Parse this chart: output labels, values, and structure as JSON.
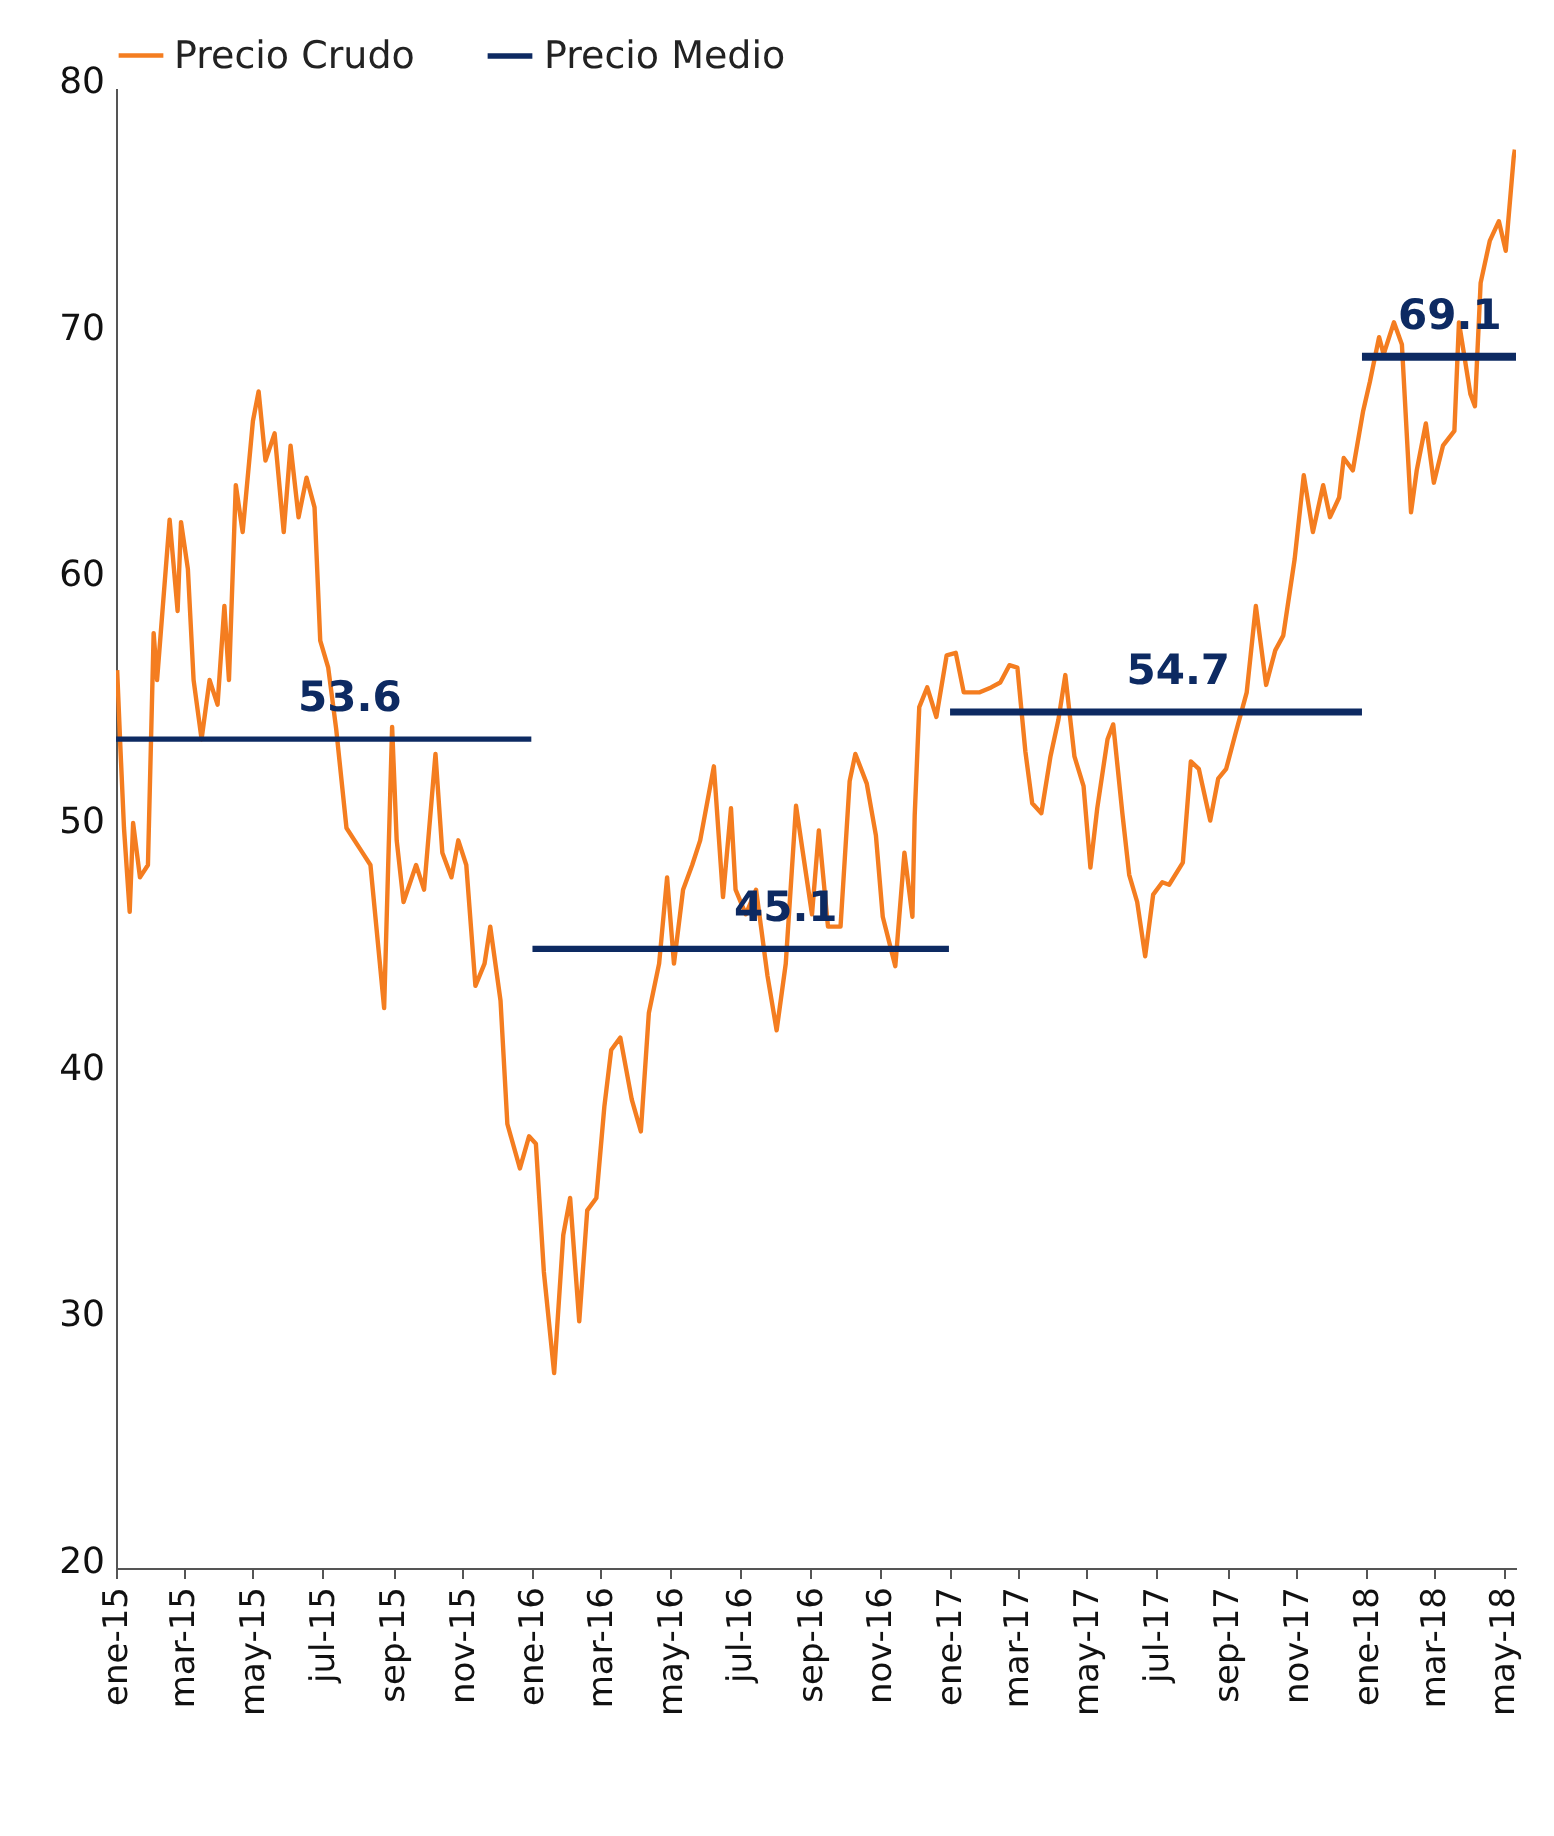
{
  "chart_data": {
    "type": "line",
    "legend": "top",
    "grid": false,
    "xlim": [
      "2015-01-01",
      "2018-05-12"
    ],
    "xticks": [
      {
        "value": "2015-01-01",
        "label": "ene-15"
      },
      {
        "value": "2015-03-01",
        "label": "mar-15"
      },
      {
        "value": "2015-05-01",
        "label": "may-15"
      },
      {
        "value": "2015-07-01",
        "label": "jul-15"
      },
      {
        "value": "2015-09-01",
        "label": "sep-15"
      },
      {
        "value": "2015-11-01",
        "label": "nov-15"
      },
      {
        "value": "2016-01-01",
        "label": "ene-16"
      },
      {
        "value": "2016-03-01",
        "label": "mar-16"
      },
      {
        "value": "2016-05-01",
        "label": "may-16"
      },
      {
        "value": "2016-07-01",
        "label": "jul-16"
      },
      {
        "value": "2016-09-01",
        "label": "sep-16"
      },
      {
        "value": "2016-11-01",
        "label": "nov-16"
      },
      {
        "value": "2017-01-01",
        "label": "ene-17"
      },
      {
        "value": "2017-03-01",
        "label": "mar-17"
      },
      {
        "value": "2017-05-01",
        "label": "may-17"
      },
      {
        "value": "2017-07-01",
        "label": "jul-17"
      },
      {
        "value": "2017-09-01",
        "label": "sep-17"
      },
      {
        "value": "2017-11-01",
        "label": "nov-17"
      },
      {
        "value": "2018-01-01",
        "label": "ene-18"
      },
      {
        "value": "2018-03-01",
        "label": "mar-18"
      },
      {
        "value": "2018-05-01",
        "label": "may-18"
      }
    ],
    "ylim": [
      20,
      80
    ],
    "yticks": [
      20,
      30,
      40,
      50,
      60,
      70,
      80
    ],
    "series": [
      {
        "name": "Precio Crudo",
        "color": "#f47d20",
        "x": [
          "2015-01-02",
          "2015-01-05",
          "2015-01-08",
          "2015-01-13",
          "2015-01-16",
          "2015-01-22",
          "2015-01-29",
          "2015-02-03",
          "2015-02-06",
          "2015-02-17",
          "2015-02-24",
          "2015-02-27",
          "2015-03-05",
          "2015-03-10",
          "2015-03-17",
          "2015-03-24",
          "2015-03-31",
          "2015-04-06",
          "2015-04-10",
          "2015-04-16",
          "2015-04-22",
          "2015-05-01",
          "2015-05-06",
          "2015-05-12",
          "2015-05-20",
          "2015-05-28",
          "2015-06-03",
          "2015-06-10",
          "2015-06-17",
          "2015-06-24",
          "2015-06-29",
          "2015-07-06",
          "2015-07-13",
          "2015-07-22",
          "2015-08-05",
          "2015-08-12",
          "2015-08-24",
          "2015-08-31",
          "2015-09-04",
          "2015-09-10",
          "2015-09-21",
          "2015-09-28",
          "2015-10-08",
          "2015-10-14",
          "2015-10-22",
          "2015-10-28",
          "2015-11-04",
          "2015-11-12",
          "2015-11-20",
          "2015-11-25",
          "2015-12-04",
          "2015-12-10",
          "2015-12-21",
          "2015-12-29",
          "2016-01-04",
          "2016-01-11",
          "2016-01-20",
          "2016-01-28",
          "2016-02-03",
          "2016-02-11",
          "2016-02-18",
          "2016-02-26",
          "2016-03-04",
          "2016-03-10",
          "2016-03-18",
          "2016-03-28",
          "2016-04-05",
          "2016-04-12",
          "2016-04-21",
          "2016-04-28",
          "2016-05-04",
          "2016-05-12",
          "2016-05-20",
          "2016-05-27",
          "2016-06-08",
          "2016-06-16",
          "2016-06-23",
          "2016-06-27",
          "2016-07-06",
          "2016-07-15",
          "2016-07-25",
          "2016-08-02",
          "2016-08-10",
          "2016-08-19",
          "2016-08-25",
          "2016-09-02",
          "2016-09-08",
          "2016-09-16",
          "2016-09-27",
          "2016-10-05",
          "2016-10-10",
          "2016-10-20",
          "2016-10-28",
          "2016-11-03",
          "2016-11-14",
          "2016-11-22",
          "2016-11-29",
          "2016-12-01",
          "2016-12-05",
          "2016-12-12",
          "2016-12-20",
          "2016-12-29",
          "2017-01-06",
          "2017-01-13",
          "2017-01-20",
          "2017-01-27",
          "2017-02-06",
          "2017-02-14",
          "2017-02-22",
          "2017-03-01",
          "2017-03-08",
          "2017-03-14",
          "2017-03-22",
          "2017-03-30",
          "2017-04-06",
          "2017-04-12",
          "2017-04-20",
          "2017-04-28",
          "2017-05-04",
          "2017-05-10",
          "2017-05-19",
          "2017-05-24",
          "2017-06-01",
          "2017-06-07",
          "2017-06-14",
          "2017-06-21",
          "2017-06-28",
          "2017-07-06",
          "2017-07-12",
          "2017-07-24",
          "2017-07-31",
          "2017-08-07",
          "2017-08-17",
          "2017-08-24",
          "2017-08-31",
          "2017-09-08",
          "2017-09-18",
          "2017-09-26",
          "2017-10-05",
          "2017-10-13",
          "2017-10-20",
          "2017-10-30",
          "2017-11-07",
          "2017-11-15",
          "2017-11-24",
          "2017-11-30",
          "2017-12-08",
          "2017-12-12",
          "2017-12-20",
          "2017-12-29",
          "2018-01-04",
          "2018-01-12",
          "2018-01-16",
          "2018-01-25",
          "2018-02-01",
          "2018-02-09",
          "2018-02-14",
          "2018-02-22",
          "2018-03-01",
          "2018-03-09",
          "2018-03-19",
          "2018-03-23",
          "2018-04-02",
          "2018-04-06",
          "2018-04-11",
          "2018-04-19",
          "2018-04-27",
          "2018-05-03",
          "2018-05-10",
          "2018-05-11"
        ],
        "values": [
          56.4,
          53.1,
          50.0,
          46.6,
          50.2,
          48.0,
          48.5,
          57.9,
          56.0,
          62.5,
          58.8,
          62.4,
          60.5,
          56.0,
          53.6,
          56.0,
          55.0,
          59.0,
          56.0,
          63.9,
          62.0,
          66.5,
          67.7,
          64.9,
          66.0,
          62.0,
          65.5,
          62.6,
          64.2,
          63.0,
          57.6,
          56.5,
          54.0,
          50.0,
          49.0,
          48.5,
          42.7,
          54.1,
          49.5,
          47.0,
          48.5,
          47.5,
          53.0,
          49.0,
          48.0,
          49.5,
          48.5,
          43.6,
          44.5,
          46.0,
          43.0,
          38.0,
          36.2,
          37.5,
          37.2,
          32.0,
          27.9,
          33.5,
          35.0,
          30.0,
          34.5,
          35.0,
          38.7,
          41.0,
          41.5,
          39.0,
          37.7,
          42.5,
          44.5,
          48.0,
          44.5,
          47.5,
          48.5,
          49.5,
          52.5,
          47.2,
          50.8,
          47.5,
          46.5,
          47.5,
          44.0,
          41.8,
          44.5,
          50.9,
          49.0,
          46.5,
          49.9,
          46.0,
          46.0,
          51.9,
          53.0,
          51.8,
          49.7,
          46.4,
          44.4,
          49.0,
          46.4,
          50.5,
          54.9,
          55.7,
          54.5,
          57.0,
          57.1,
          55.5,
          55.5,
          55.5,
          55.7,
          55.9,
          56.6,
          56.5,
          53.1,
          51.0,
          50.6,
          52.9,
          54.4,
          56.2,
          52.9,
          51.7,
          48.4,
          50.8,
          53.6,
          54.2,
          50.6,
          48.1,
          47.0,
          44.8,
          47.3,
          47.8,
          47.7,
          48.6,
          52.7,
          52.4,
          50.3,
          52.0,
          52.4,
          53.8,
          55.5,
          59.0,
          55.8,
          57.2,
          57.8,
          60.9,
          64.3,
          62.0,
          63.9,
          62.6,
          63.4,
          65.0,
          64.5,
          66.9,
          68.1,
          69.9,
          69.2,
          70.5,
          69.6,
          62.8,
          64.5,
          66.4,
          64.0,
          65.5,
          66.1,
          70.5,
          67.6,
          67.1,
          72.1,
          73.8,
          74.6,
          73.4,
          77.2,
          77.5
        ]
      },
      {
        "name": "Precio Medio",
        "color": "#0d2a62",
        "x": [
          "2015-01-01",
          "2015-07-25",
          "2015-12-31"
        ],
        "values": [
          53.6,
          53.6,
          53.6
        ],
        "value_labels": [
          null,
          "53.6",
          null
        ]
      },
      {
        "color": "#0d2a62",
        "x": [
          "2016-01-01",
          "2016-08-10",
          "2016-12-31"
        ],
        "values": [
          45.1,
          45.1,
          45.1
        ],
        "value_labels": [
          null,
          "45.1",
          null
        ]
      },
      {
        "color": "#0d2a62",
        "x": [
          "2017-01-01",
          "2017-07-20",
          "2017-12-28"
        ],
        "values": [
          54.7,
          54.7,
          54.7
        ],
        "value_labels": [
          null,
          "54.7",
          null
        ]
      },
      {
        "color": "#0d2a62",
        "x": [
          "2017-12-28",
          "2018-03-15",
          "2018-05-12"
        ],
        "values": [
          69.1,
          69.1,
          69.1
        ],
        "value_labels": [
          null,
          "69.1",
          null
        ]
      }
    ]
  }
}
